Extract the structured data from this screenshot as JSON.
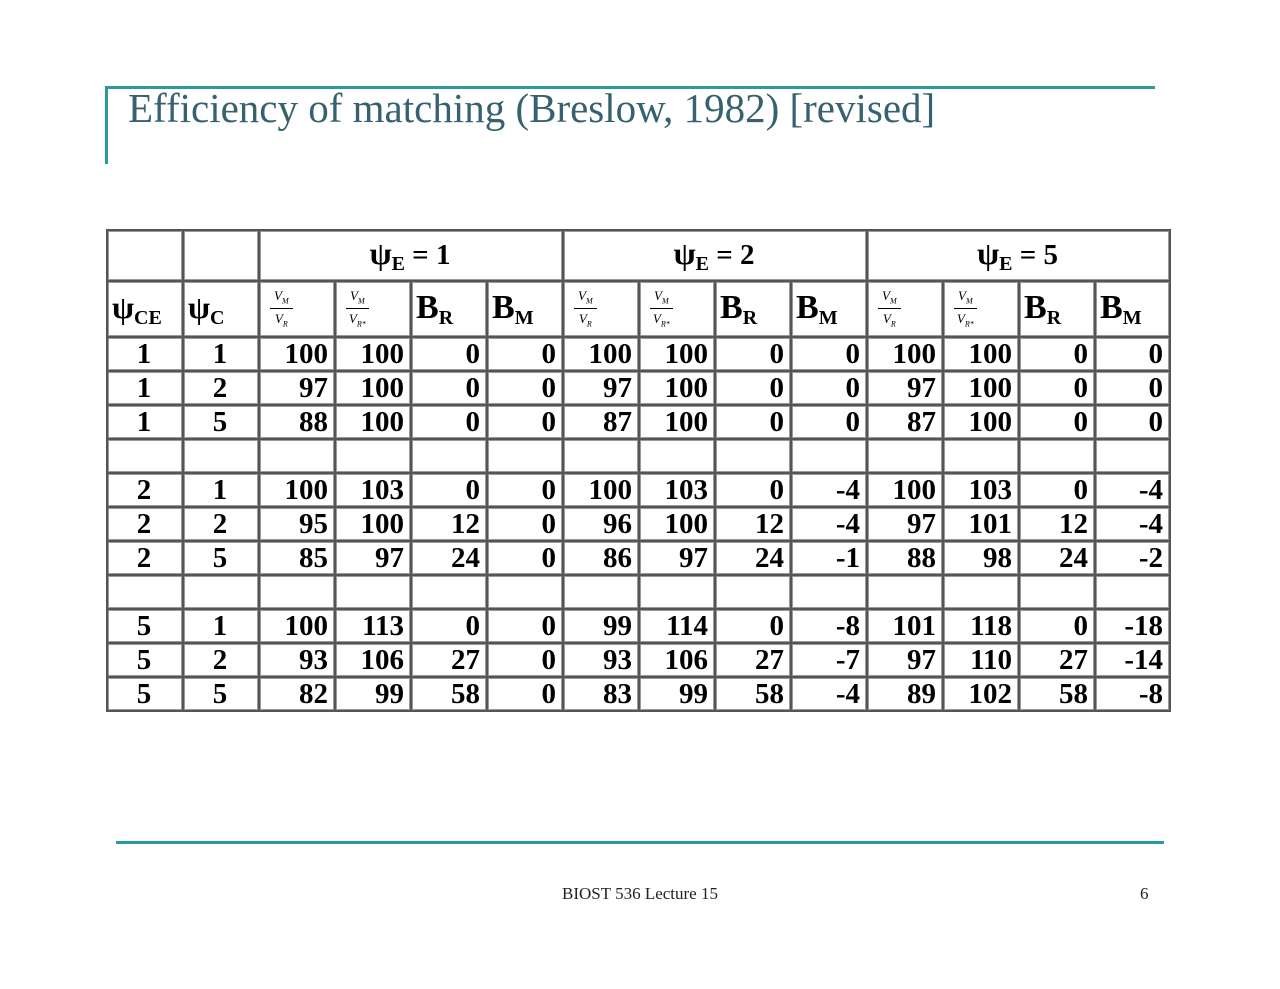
{
  "slide": {
    "title": "Efficiency of matching (Breslow, 1982) [revised]",
    "footer": "BIOST 536 Lecture 15",
    "page_number": "6",
    "accent_color": "#2a9a9d",
    "title_color": "#36616e"
  },
  "table": {
    "row_header_labels": [
      {
        "symbol": "ψ",
        "sub": "CE"
      },
      {
        "symbol": "ψ",
        "sub": "C"
      }
    ],
    "groups": [
      {
        "symbol": "ψ",
        "sub": "E",
        "value": " = 1"
      },
      {
        "symbol": "ψ",
        "sub": "E",
        "value": " = 2"
      },
      {
        "symbol": "ψ",
        "sub": "E",
        "value": " = 5"
      }
    ],
    "ratio_labels": [
      {
        "num": "V",
        "num_sub": "M",
        "den": "V",
        "den_sub": "R"
      },
      {
        "num": "V",
        "num_sub": "M",
        "den": "V",
        "den_sub": "R*"
      }
    ],
    "bias_labels": [
      {
        "symbol": "B",
        "sub": "R"
      },
      {
        "symbol": "B",
        "sub": "M"
      }
    ],
    "rows": [
      [
        "1",
        "1",
        "100",
        "100",
        "0",
        "0",
        "100",
        "100",
        "0",
        "0",
        "100",
        "100",
        "0",
        "0"
      ],
      [
        "1",
        "2",
        "97",
        "100",
        "0",
        "0",
        "97",
        "100",
        "0",
        "0",
        "97",
        "100",
        "0",
        "0"
      ],
      [
        "1",
        "5",
        "88",
        "100",
        "0",
        "0",
        "87",
        "100",
        "0",
        "0",
        "87",
        "100",
        "0",
        "0"
      ],
      null,
      [
        "2",
        "1",
        "100",
        "103",
        "0",
        "0",
        "100",
        "103",
        "0",
        "-4",
        "100",
        "103",
        "0",
        "-4"
      ],
      [
        "2",
        "2",
        "95",
        "100",
        "12",
        "0",
        "96",
        "100",
        "12",
        "-4",
        "97",
        "101",
        "12",
        "-4"
      ],
      [
        "2",
        "5",
        "85",
        "97",
        "24",
        "0",
        "86",
        "97",
        "24",
        "-1",
        "88",
        "98",
        "24",
        "-2"
      ],
      null,
      [
        "5",
        "1",
        "100",
        "113",
        "0",
        "0",
        "99",
        "114",
        "0",
        "-8",
        "101",
        "118",
        "0",
        "-18"
      ],
      [
        "5",
        "2",
        "93",
        "106",
        "27",
        "0",
        "93",
        "106",
        "27",
        "-7",
        "97",
        "110",
        "27",
        "-14"
      ],
      [
        "5",
        "5",
        "82",
        "99",
        "58",
        "0",
        "83",
        "99",
        "58",
        "-4",
        "89",
        "102",
        "58",
        "-8"
      ]
    ]
  }
}
